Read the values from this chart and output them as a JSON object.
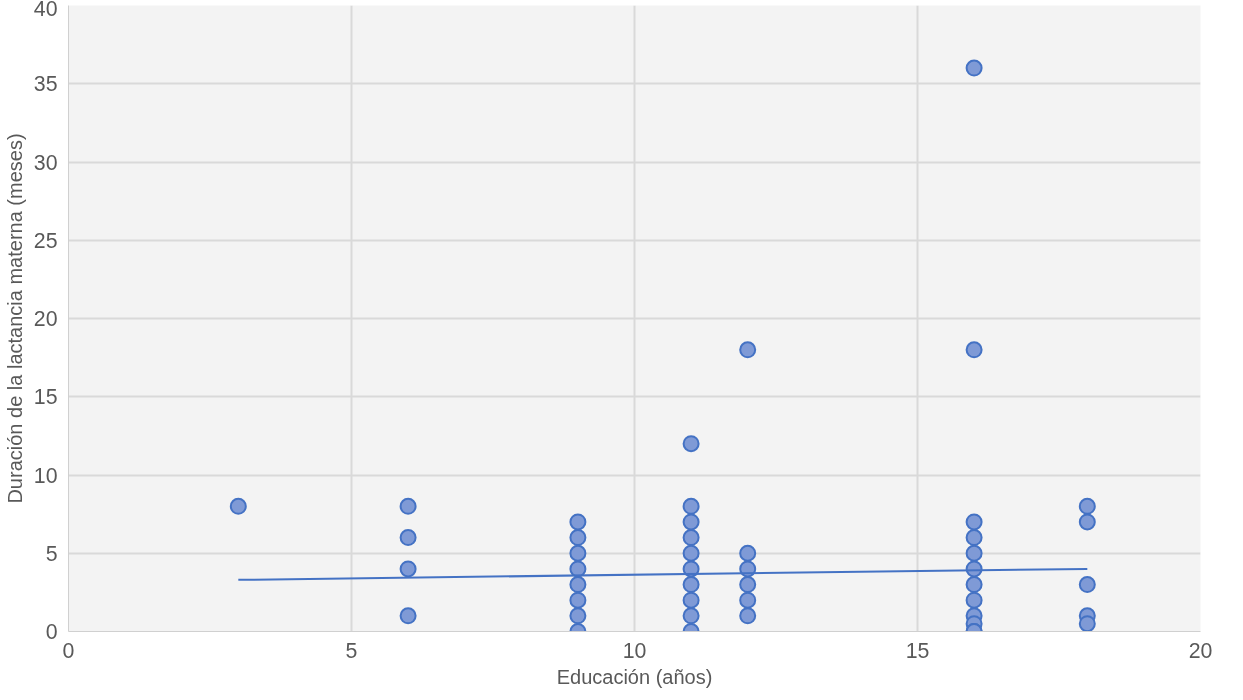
{
  "chart_data": {
    "type": "scatter",
    "xlabel": "Educación (años)",
    "ylabel": "Duración de la lactancia materna (meses)",
    "xlim": [
      0,
      20
    ],
    "xticks": [
      0,
      5,
      10,
      15,
      20
    ],
    "ylim": [
      0,
      40
    ],
    "yticks": [
      0,
      5,
      10,
      15,
      20,
      25,
      30,
      35,
      40
    ],
    "grid": true,
    "series": [
      {
        "marker": "circle",
        "color": "#7f9ad6",
        "x": [
          3,
          6,
          6,
          6,
          6,
          9,
          9,
          9,
          9,
          9,
          9,
          9,
          9,
          11,
          11,
          11,
          11,
          11,
          11,
          11,
          11,
          11,
          11,
          12,
          12,
          12,
          12,
          12,
          12,
          16,
          16,
          16,
          16,
          16,
          16,
          16,
          16,
          16,
          16,
          16,
          16,
          18,
          18,
          18,
          18,
          18
        ],
        "values": [
          8,
          8,
          6,
          4,
          1,
          7,
          6,
          5,
          4,
          3,
          2,
          1,
          0,
          12,
          8,
          7,
          6,
          5,
          4,
          3,
          2,
          1,
          0,
          18,
          5,
          4,
          3,
          2,
          1,
          36,
          18,
          7,
          6,
          5,
          4,
          3,
          2,
          1,
          0.5,
          0,
          0,
          8,
          7,
          3,
          1,
          0.5
        ]
      },
      {
        "type": "line",
        "color": "#4472c4",
        "x": [
          3,
          18
        ],
        "values": [
          3.3,
          4.0
        ]
      }
    ]
  }
}
